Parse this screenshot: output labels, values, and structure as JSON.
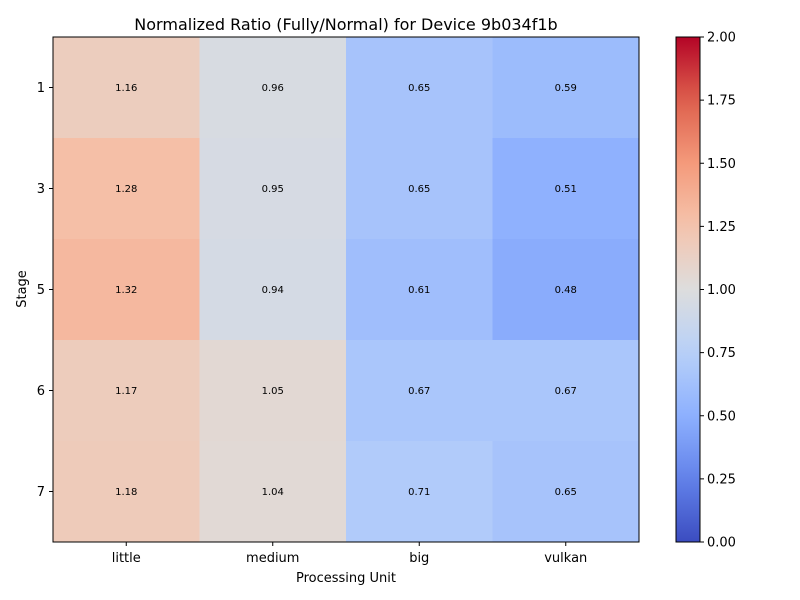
{
  "chart_data": {
    "type": "heatmap",
    "title": "Normalized Ratio (Fully/Normal) for Device 9b034f1b",
    "xlabel": "Processing Unit",
    "ylabel": "Stage",
    "x_categories": [
      "little",
      "medium",
      "big",
      "vulkan"
    ],
    "y_categories": [
      "1",
      "3",
      "5",
      "6",
      "7"
    ],
    "values": [
      [
        1.16,
        0.96,
        0.65,
        0.59
      ],
      [
        1.28,
        0.95,
        0.65,
        0.51
      ],
      [
        1.32,
        0.94,
        0.61,
        0.48
      ],
      [
        1.17,
        1.05,
        0.67,
        0.67
      ],
      [
        1.18,
        1.04,
        0.71,
        0.65
      ]
    ],
    "colormap": "coolwarm",
    "vmin": 0.0,
    "vmax": 2.0,
    "colorbar_ticks": [
      "0.00",
      "0.25",
      "0.50",
      "0.75",
      "1.00",
      "1.25",
      "1.50",
      "1.75",
      "2.00"
    ],
    "legend_placement": "right",
    "grid": false
  }
}
